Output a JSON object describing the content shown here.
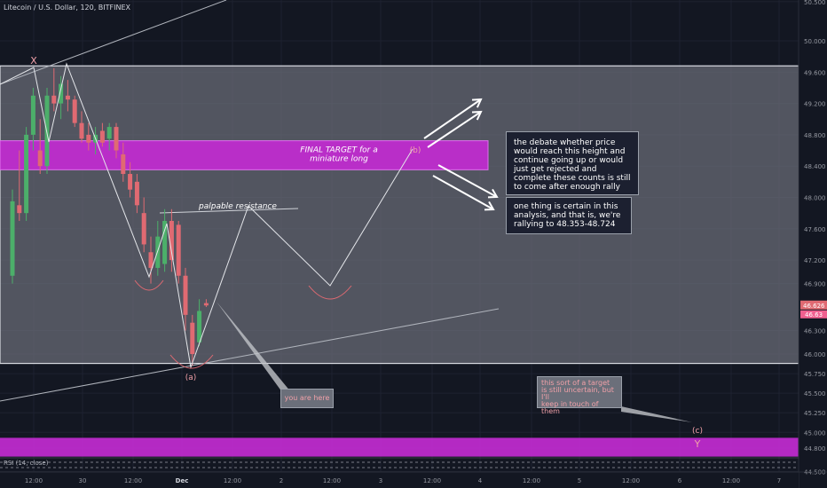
{
  "header": {
    "title": "Litecoin / U.S. Dollar, 120, BITFINEX"
  },
  "colors": {
    "background": "#131722",
    "grid": "#1e2230",
    "range_fill": "#6b6e78",
    "magenta": "#c22bd1",
    "up_candle": "#4caf6a",
    "down_candle": "#e06a72",
    "text": "#d1d4dc",
    "salmon": "#f0a0a8"
  },
  "annotations": {
    "final_target": "FINAL TARGET for a\nminiature long",
    "palpable_resistance": "palpable resistance",
    "wave_x": "X",
    "wave_a": "(a)",
    "wave_b": "(b)",
    "wave_c": "(c)",
    "wave_y": "Y",
    "rsi_label": "RSI (14, close)",
    "debate_note": "the debate whether price\nwould reach this height and\ncontinue going up or would\njust get rejected and\ncomplete these counts is still\nto come after enough rally",
    "certain_note": "one thing is certain in this\nanalysis, and that is, we're\nrallying to 48.353-48.724",
    "you_are_here": "you are here",
    "target_uncertain": "this sort of a target\nis still uncertain, but I'll\nkeep in touch of them"
  },
  "chart_data": {
    "type": "candlestick",
    "title": "Litecoin / U.S. Dollar, 120, BITFINEX",
    "y_axis": {
      "ylim": [
        44.38,
        50.62
      ],
      "ticks": [
        "50.500",
        "50.000",
        "49.600",
        "49.200",
        "48.800",
        "48.400",
        "48.000",
        "47.600",
        "47.200",
        "46.900",
        "46.300",
        "46.000",
        "45.750",
        "45.500",
        "45.250",
        "45.000",
        "44.800",
        "44.500"
      ],
      "current_price": "46.626",
      "secondary_price": "46.63"
    },
    "x_axis": {
      "ticks": [
        "12:00",
        "30",
        "12:00",
        "Dec",
        "12:00",
        "2",
        "12:00",
        "3",
        "12:00",
        "4",
        "12:00",
        "5",
        "12:00",
        "6",
        "12:00",
        "7"
      ]
    },
    "zones": {
      "range": [
        45.88,
        49.68
      ],
      "final_target": [
        48.353,
        48.724
      ],
      "lower_band": [
        44.69,
        44.93
      ]
    },
    "candles": [
      {
        "o": 47.0,
        "h": 48.1,
        "l": 46.9,
        "c": 47.95
      },
      {
        "o": 47.9,
        "h": 48.6,
        "l": 47.7,
        "c": 47.8
      },
      {
        "o": 47.8,
        "h": 48.9,
        "l": 47.7,
        "c": 48.8
      },
      {
        "o": 48.8,
        "h": 49.4,
        "l": 48.6,
        "c": 49.3
      },
      {
        "o": 48.6,
        "h": 49.0,
        "l": 48.3,
        "c": 48.4
      },
      {
        "o": 48.4,
        "h": 49.4,
        "l": 48.3,
        "c": 49.3
      },
      {
        "o": 49.3,
        "h": 49.65,
        "l": 49.1,
        "c": 49.2
      },
      {
        "o": 49.2,
        "h": 49.55,
        "l": 49.0,
        "c": 49.45
      },
      {
        "o": 49.3,
        "h": 49.5,
        "l": 49.1,
        "c": 49.25
      },
      {
        "o": 49.25,
        "h": 49.3,
        "l": 48.9,
        "c": 48.95
      },
      {
        "o": 48.95,
        "h": 49.1,
        "l": 48.7,
        "c": 48.75
      },
      {
        "o": 48.8,
        "h": 48.95,
        "l": 48.6,
        "c": 48.7
      },
      {
        "o": 48.7,
        "h": 48.9,
        "l": 48.55,
        "c": 48.8
      },
      {
        "o": 48.85,
        "h": 48.95,
        "l": 48.65,
        "c": 48.7
      },
      {
        "o": 48.75,
        "h": 48.95,
        "l": 48.6,
        "c": 48.9
      },
      {
        "o": 48.9,
        "h": 48.95,
        "l": 48.5,
        "c": 48.6
      },
      {
        "o": 48.55,
        "h": 48.7,
        "l": 48.2,
        "c": 48.3
      },
      {
        "o": 48.3,
        "h": 48.45,
        "l": 48.0,
        "c": 48.1
      },
      {
        "o": 48.2,
        "h": 48.3,
        "l": 47.8,
        "c": 47.9
      },
      {
        "o": 47.8,
        "h": 48.0,
        "l": 47.3,
        "c": 47.4
      },
      {
        "o": 47.3,
        "h": 47.5,
        "l": 46.9,
        "c": 47.1
      },
      {
        "o": 47.1,
        "h": 47.7,
        "l": 47.0,
        "c": 47.5
      },
      {
        "o": 47.15,
        "h": 47.85,
        "l": 47.05,
        "c": 47.7
      },
      {
        "o": 47.7,
        "h": 47.85,
        "l": 47.05,
        "c": 47.2
      },
      {
        "o": 47.65,
        "h": 47.7,
        "l": 46.9,
        "c": 47.0
      },
      {
        "o": 47.0,
        "h": 47.1,
        "l": 46.3,
        "c": 46.5
      },
      {
        "o": 46.4,
        "h": 46.5,
        "l": 45.85,
        "c": 46.0
      },
      {
        "o": 46.15,
        "h": 46.7,
        "l": 46.1,
        "c": 46.55
      },
      {
        "o": 46.65,
        "h": 46.7,
        "l": 46.6,
        "c": 46.62
      }
    ],
    "wave_path": [
      {
        "label": "X",
        "y": 49.68
      },
      {
        "label": "(a)",
        "y": 45.85
      },
      {
        "label": "(b)",
        "y": 48.5
      },
      {
        "label": "(c)",
        "y": 44.9
      }
    ]
  }
}
